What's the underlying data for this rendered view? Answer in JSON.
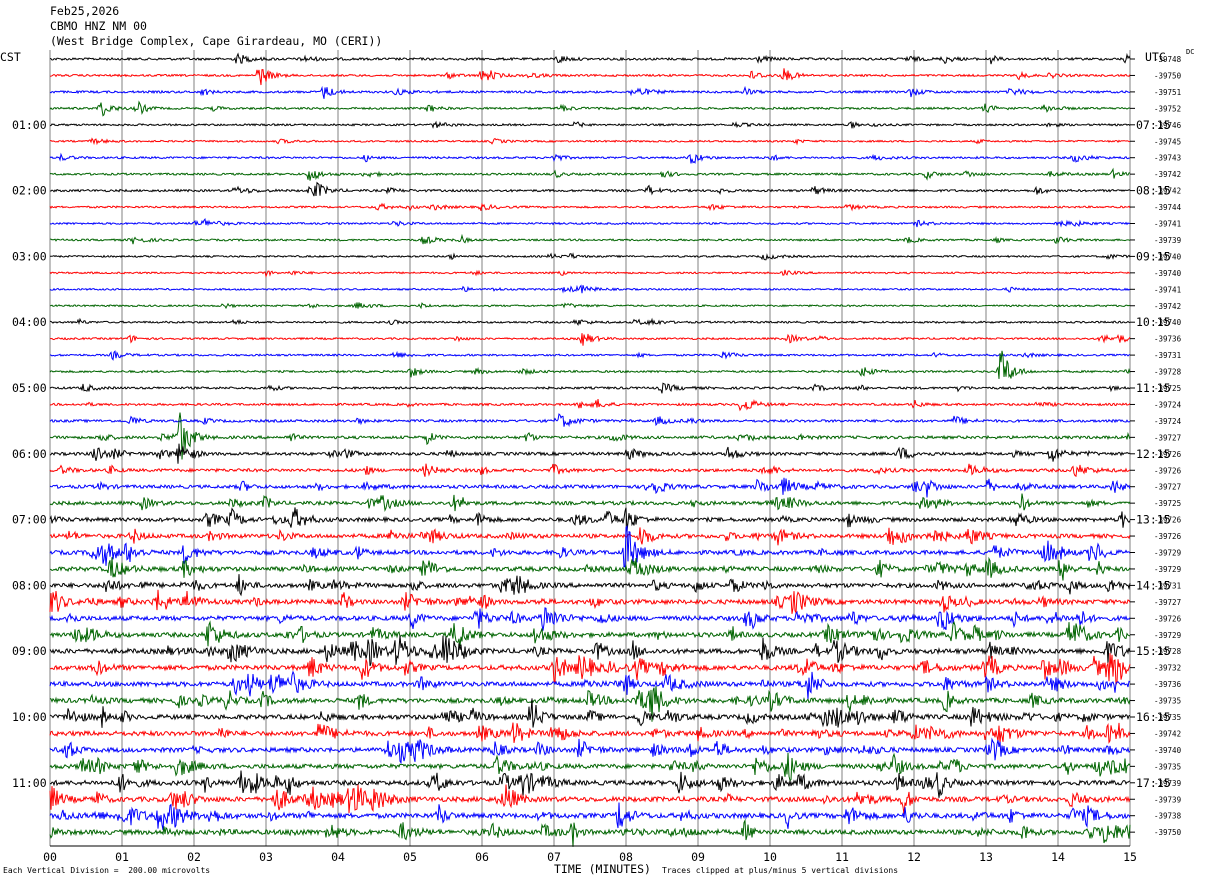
{
  "header": {
    "date": "Feb25,2026",
    "station": "CBMO HNZ NM 00",
    "location": "(West Bridge Complex, Cape Girardeau, MO (CERI))"
  },
  "left_axis_label": "CST",
  "right_axis_label": "UTC",
  "dc_label": "DC",
  "footer": {
    "scale_note": "Each Vertical Division =  200.00 microvolts",
    "clip_note": "Traces clipped at plus/minus 5 vertical divisions"
  },
  "colors": {
    "cycle": [
      "#000000",
      "#ff0000",
      "#0000ff",
      "#006400"
    ],
    "grid": "#808080"
  },
  "chart_data": {
    "type": "line",
    "xlabel": "TIME (MINUTES)",
    "xlim": [
      0,
      15
    ],
    "x_ticks": [
      "00",
      "01",
      "02",
      "03",
      "04",
      "05",
      "06",
      "07",
      "08",
      "09",
      "10",
      "11",
      "12",
      "13",
      "14",
      "15"
    ],
    "cst_labels": [
      {
        "row": 4,
        "text": "01:00"
      },
      {
        "row": 8,
        "text": "02:00"
      },
      {
        "row": 12,
        "text": "03:00"
      },
      {
        "row": 16,
        "text": "04:00"
      },
      {
        "row": 20,
        "text": "05:00"
      },
      {
        "row": 24,
        "text": "06:00"
      },
      {
        "row": 28,
        "text": "07:00"
      },
      {
        "row": 32,
        "text": "08:00"
      },
      {
        "row": 36,
        "text": "09:00"
      },
      {
        "row": 40,
        "text": "10:00"
      },
      {
        "row": 44,
        "text": "11:00"
      }
    ],
    "utc_labels": [
      {
        "row": 4,
        "text": "07:15"
      },
      {
        "row": 8,
        "text": "08:15"
      },
      {
        "row": 12,
        "text": "09:15"
      },
      {
        "row": 16,
        "text": "10:15"
      },
      {
        "row": 20,
        "text": "11:15"
      },
      {
        "row": 24,
        "text": "12:15"
      },
      {
        "row": 28,
        "text": "13:15"
      },
      {
        "row": 32,
        "text": "14:15"
      },
      {
        "row": 36,
        "text": "15:15"
      },
      {
        "row": 40,
        "text": "16:15"
      },
      {
        "row": 44,
        "text": "17:15"
      }
    ],
    "dc_offsets": [
      "-39748",
      "-39750",
      "-39751",
      "-39752",
      "-39746",
      "-39745",
      "-39743",
      "-39742",
      "-39742",
      "-39744",
      "-39741",
      "-39739",
      "-39740",
      "-39740",
      "-39741",
      "-39742",
      "-39740",
      "-39736",
      "-39731",
      "-39728",
      "-39725",
      "-39724",
      "-39724",
      "-39727",
      "-39726",
      "-39726",
      "-39727",
      "-39725",
      "-39726",
      "-39726",
      "-39729",
      "-39729",
      "-39731",
      "-39727",
      "-39726",
      "-39729",
      "-39728",
      "-39732",
      "-39736",
      "-39735",
      "-39735",
      "-39742",
      "-39740",
      "-39735",
      "-39739",
      "-39739",
      "-39738",
      "-39750"
    ],
    "activity_level": [
      0.7,
      0.5,
      0.6,
      0.5,
      0.4,
      0.3,
      0.5,
      0.5,
      0.6,
      0.4,
      0.4,
      0.4,
      0.3,
      0.3,
      0.3,
      0.3,
      0.4,
      0.4,
      0.4,
      0.5,
      0.6,
      0.6,
      0.8,
      1.0,
      1.1,
      1.1,
      1.3,
      1.4,
      1.6,
      1.7,
      1.8,
      1.9,
      1.9,
      2.0,
      2.0,
      2.0,
      2.2,
      2.2,
      2.1,
      2.1,
      2.1,
      2.1,
      2.0,
      2.0,
      2.1,
      2.2,
      2.2,
      2.1
    ],
    "events": [
      {
        "row": 1,
        "t": 2.9,
        "amp": 12
      },
      {
        "row": 1,
        "t": 10.2,
        "amp": 7
      },
      {
        "row": 2,
        "t": 3.8,
        "amp": 7
      },
      {
        "row": 3,
        "t": 0.7,
        "amp": 9
      },
      {
        "row": 6,
        "t": 8.9,
        "amp": 7
      },
      {
        "row": 7,
        "t": 3.6,
        "amp": 8
      },
      {
        "row": 8,
        "t": 3.7,
        "amp": 7
      },
      {
        "row": 17,
        "t": 7.4,
        "amp": 8
      },
      {
        "row": 19,
        "t": 13.2,
        "amp": 26
      },
      {
        "row": 21,
        "t": 9.6,
        "amp": 7
      },
      {
        "row": 23,
        "t": 1.8,
        "amp": 24
      },
      {
        "row": 24,
        "t": 1.8,
        "amp": 14
      },
      {
        "row": 24,
        "t": 13.9,
        "amp": 10
      },
      {
        "row": 28,
        "t": 8.0,
        "amp": 12
      },
      {
        "row": 29,
        "t": 8.2,
        "amp": 12
      },
      {
        "row": 30,
        "t": 8.0,
        "amp": 22
      },
      {
        "row": 31,
        "t": 5.2,
        "amp": 14
      },
      {
        "row": 33,
        "t": 12.4,
        "amp": 10
      },
      {
        "row": 35,
        "t": 5.6,
        "amp": 12
      },
      {
        "row": 36,
        "t": 9.9,
        "amp": 14
      },
      {
        "row": 37,
        "t": 13.8,
        "amp": 12
      },
      {
        "row": 37,
        "t": 14.7,
        "amp": 16
      },
      {
        "row": 46,
        "t": 7.9,
        "amp": 16
      },
      {
        "row": 45,
        "t": 1.7,
        "amp": 12
      }
    ]
  }
}
